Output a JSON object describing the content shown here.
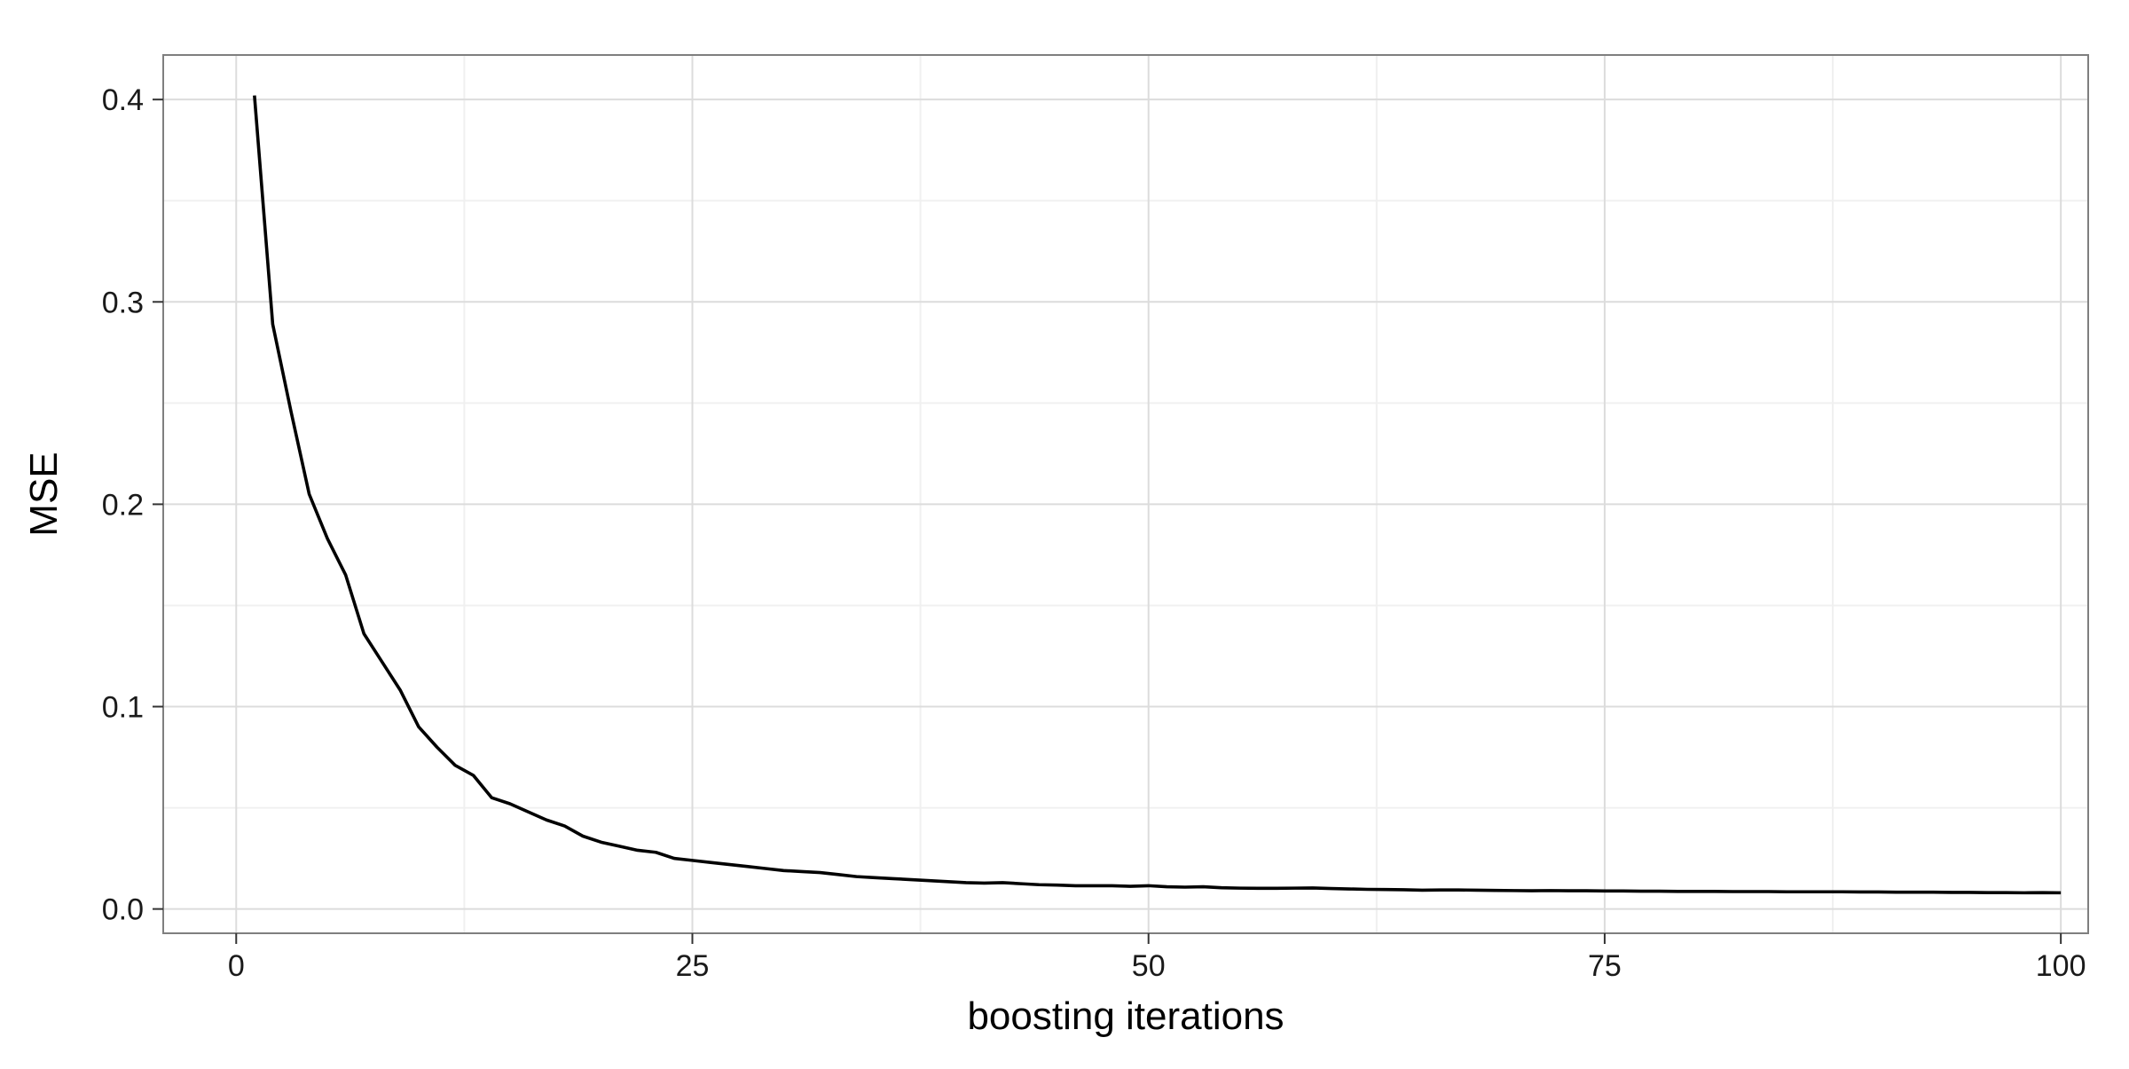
{
  "chart_data": {
    "type": "line",
    "title": "",
    "xlabel": "boosting iterations",
    "ylabel": "MSE",
    "xlim": [
      -4,
      101.5
    ],
    "ylim": [
      -0.012,
      0.422
    ],
    "x_ticks": [
      0,
      25,
      50,
      75,
      100
    ],
    "x_tick_labels": [
      "0",
      "25",
      "50",
      "75",
      "100"
    ],
    "y_ticks": [
      0.0,
      0.1,
      0.2,
      0.3,
      0.4
    ],
    "y_tick_labels": [
      "0.0",
      "0.1",
      "0.2",
      "0.3",
      "0.4"
    ],
    "grid": true,
    "legend": "none",
    "colors": {
      "line": "#000000",
      "grid_major": "#dcdcdc",
      "grid_minor": "#f0f0f0",
      "panel_border": "#7f7f7f",
      "tick_mark": "#333333"
    },
    "series": [
      {
        "x": [
          1,
          2,
          3,
          4,
          5,
          6,
          7,
          8,
          9,
          10,
          11,
          12,
          13,
          14,
          15,
          16,
          17,
          18,
          19,
          20,
          21,
          22,
          23,
          24,
          25,
          26,
          27,
          28,
          29,
          30,
          31,
          32,
          33,
          34,
          35,
          36,
          37,
          38,
          39,
          40,
          41,
          42,
          43,
          44,
          45,
          46,
          47,
          48,
          49,
          50,
          51,
          52,
          53,
          54,
          55,
          56,
          57,
          58,
          59,
          60,
          61,
          62,
          63,
          64,
          65,
          66,
          67,
          68,
          69,
          70,
          71,
          72,
          73,
          74,
          75,
          76,
          77,
          78,
          79,
          80,
          81,
          82,
          83,
          84,
          85,
          86,
          87,
          88,
          89,
          90,
          91,
          92,
          93,
          94,
          95,
          96,
          97,
          98,
          99,
          100
        ],
        "y": [
          0.402,
          0.289,
          0.246,
          0.205,
          0.183,
          0.165,
          0.136,
          0.122,
          0.108,
          0.09,
          0.08,
          0.071,
          0.066,
          0.055,
          0.052,
          0.048,
          0.044,
          0.041,
          0.036,
          0.033,
          0.031,
          0.029,
          0.028,
          0.025,
          0.024,
          0.023,
          0.022,
          0.021,
          0.02,
          0.019,
          0.0185,
          0.018,
          0.017,
          0.016,
          0.0155,
          0.015,
          0.0145,
          0.014,
          0.0135,
          0.013,
          0.0128,
          0.013,
          0.0125,
          0.012,
          0.0118,
          0.0115,
          0.0115,
          0.0115,
          0.0112,
          0.0115,
          0.011,
          0.0108,
          0.011,
          0.0105,
          0.0103,
          0.0102,
          0.0102,
          0.0103,
          0.0104,
          0.0101,
          0.0099,
          0.0097,
          0.0096,
          0.0095,
          0.0093,
          0.0094,
          0.0094,
          0.0093,
          0.0092,
          0.0091,
          0.009,
          0.0091,
          0.009,
          0.009,
          0.0089,
          0.0089,
          0.0088,
          0.0088,
          0.0087,
          0.0087,
          0.0087,
          0.0086,
          0.0086,
          0.0086,
          0.0085,
          0.0085,
          0.0085,
          0.0085,
          0.0084,
          0.0084,
          0.0083,
          0.0083,
          0.0083,
          0.0082,
          0.0082,
          0.0081,
          0.0081,
          0.008,
          0.0081,
          0.008
        ]
      }
    ]
  }
}
